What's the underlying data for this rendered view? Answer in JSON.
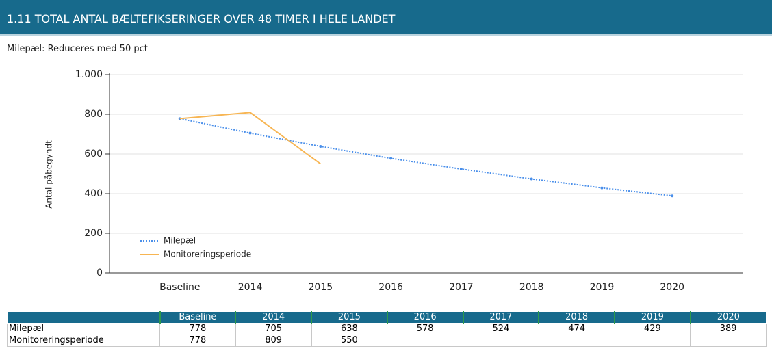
{
  "header": {
    "title": "1.11 TOTAL ANTAL BÆLTEFIKSERINGER OVER 48 TIMER I HELE LANDET"
  },
  "subtitle": "Milepæl: Reduceres med 50 pct",
  "chart_data": {
    "type": "line",
    "y_label": "Antal påbegyndt",
    "categories": [
      "Baseline",
      "2014",
      "2015",
      "2016",
      "2017",
      "2018",
      "2019",
      "2020"
    ],
    "series": [
      {
        "name": "Milepæl",
        "color": "#4a8fea",
        "values": [
          778,
          705,
          638,
          578,
          524,
          474,
          429,
          389
        ]
      },
      {
        "name": "Monitoreringsperiode",
        "color": "#f7b552",
        "values": [
          778,
          809,
          550,
          null,
          null,
          null,
          null,
          null
        ]
      }
    ],
    "ylim": [
      0,
      1000
    ],
    "yticks": [
      0,
      200,
      400,
      600,
      800,
      {
        "value": 1000,
        "label": "1.000"
      }
    ],
    "grid": true,
    "legend": "lower left"
  }
}
